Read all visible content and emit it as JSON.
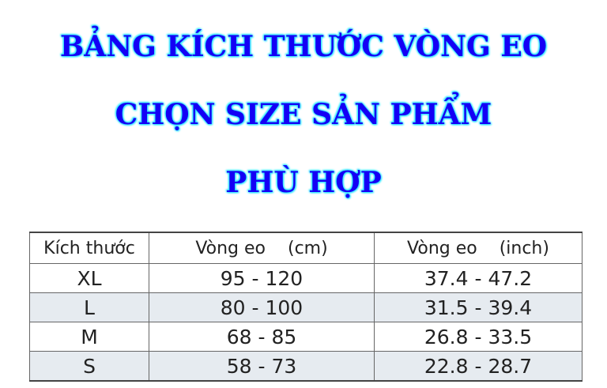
{
  "title_lines": [
    "BẢNG KÍCH THƯỚC VÒNG EO",
    "CHỌN SIZE SẢN PHẨM",
    "PHÙ HỢP"
  ],
  "colors": {
    "title": "#1400f5",
    "title_glow": "#29e6ff",
    "alt_row": "#e6ebf0"
  },
  "table": {
    "headers": [
      "Kích thước",
      "Vòng eo    (cm)",
      "Vòng eo    (inch)"
    ],
    "rows": [
      [
        "XL",
        "95 - 120",
        "37.4 - 47.2"
      ],
      [
        "L",
        "80 - 100",
        "31.5 - 39.4"
      ],
      [
        "M",
        "68 - 85",
        "26.8 - 33.5"
      ],
      [
        "S",
        "58 - 73",
        "22.8 - 28.7"
      ]
    ]
  }
}
